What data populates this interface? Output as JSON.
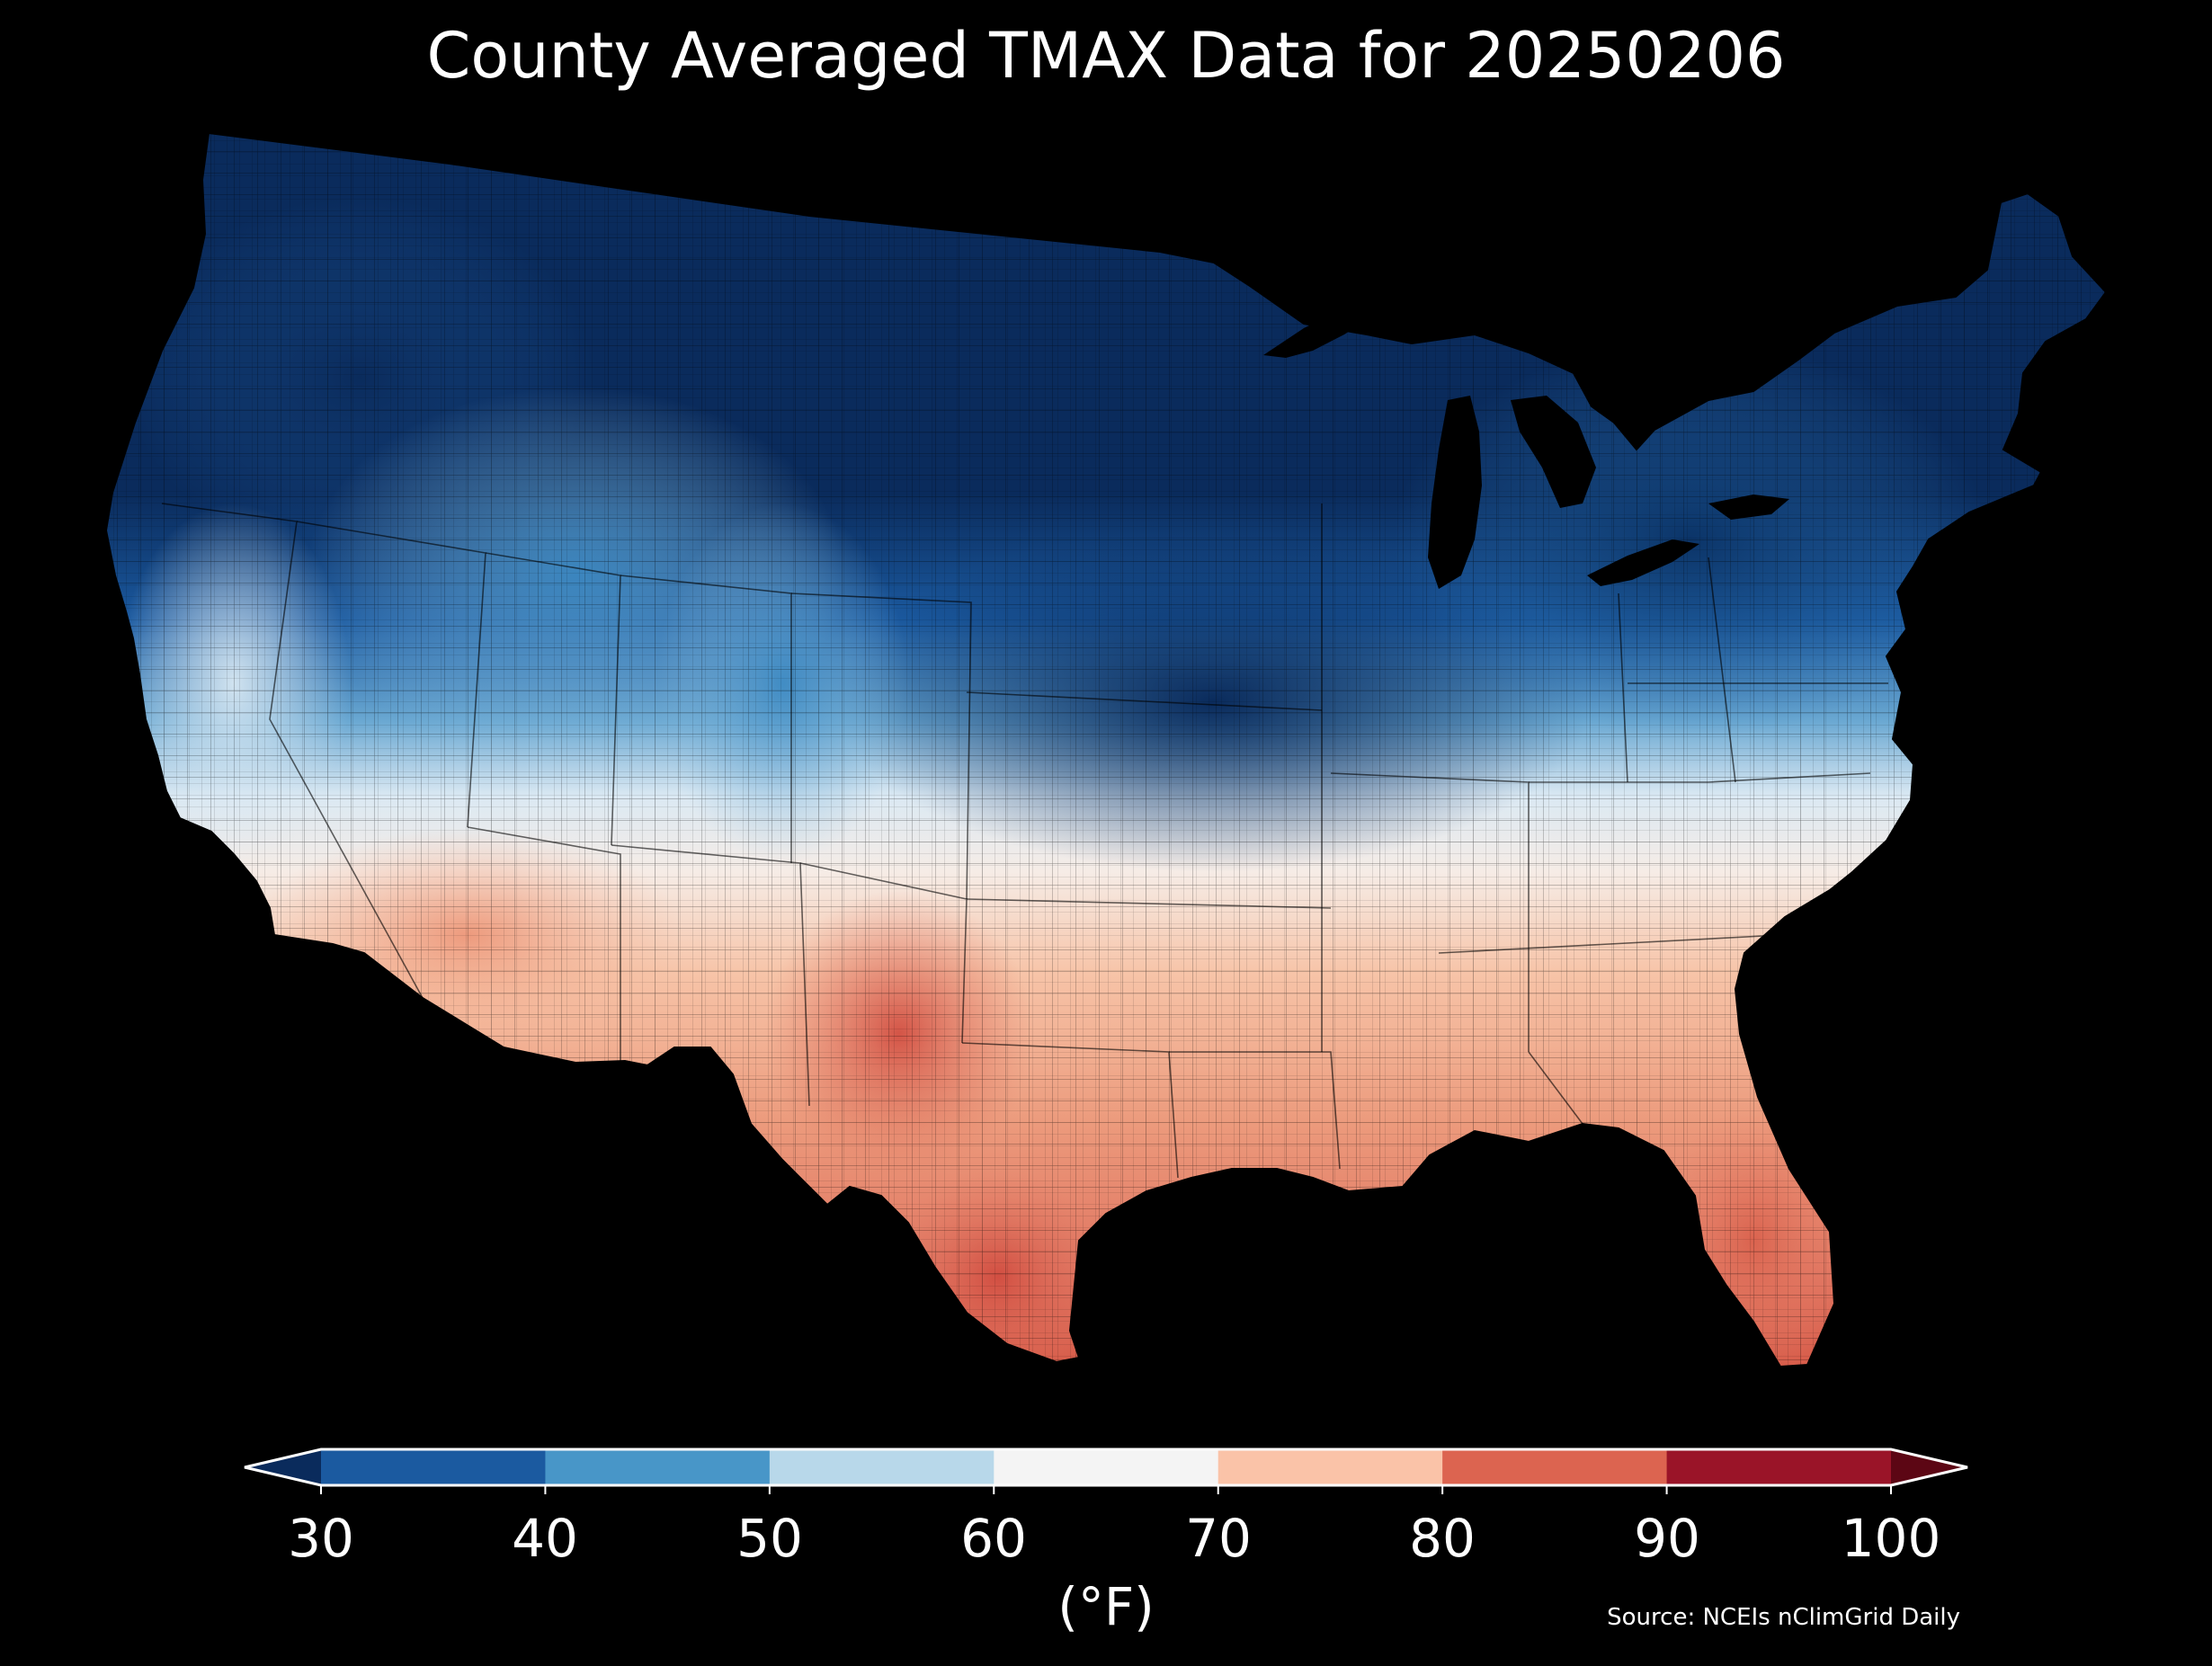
{
  "title": "County Averaged TMAX Data for 20250206",
  "legend": {
    "ticks": [
      "30",
      "40",
      "50",
      "60",
      "70",
      "80",
      "90",
      "100"
    ],
    "unit": "(°F)",
    "colors": {
      "under": "#0a2b5c",
      "bins": [
        "#1b5aa0",
        "#4896c8",
        "#b8d8ea",
        "#f4f4f4",
        "#fac3a8",
        "#dc6450",
        "#9a1428"
      ],
      "over": "#5c0614"
    }
  },
  "source": "Source: NCEIs nClimGrid Daily"
}
